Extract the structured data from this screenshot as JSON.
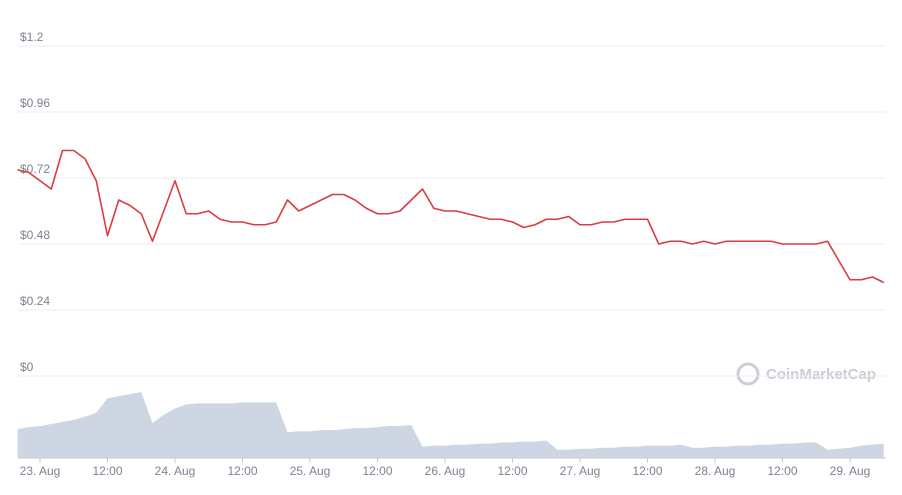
{
  "chart_data": {
    "type": "line",
    "categories": [
      null,
      null,
      "23. Aug",
      null,
      null,
      null,
      null,
      null,
      "12:00",
      null,
      null,
      null,
      null,
      null,
      "24. Aug",
      null,
      null,
      null,
      null,
      null,
      "12:00",
      null,
      null,
      null,
      null,
      null,
      "25. Aug",
      null,
      null,
      null,
      null,
      null,
      "12:00",
      null,
      null,
      null,
      null,
      null,
      "26. Aug",
      null,
      null,
      null,
      null,
      null,
      "12:00",
      null,
      null,
      null,
      null,
      null,
      "27. Aug",
      null,
      null,
      null,
      null,
      null,
      "12:00",
      null,
      null,
      null,
      null,
      null,
      "28. Aug",
      null,
      null,
      null,
      null,
      null,
      "12:00",
      null,
      null,
      null,
      null,
      null,
      "29. Aug",
      null,
      null,
      null
    ],
    "values": [
      0.75,
      0.74,
      0.71,
      0.68,
      0.82,
      0.82,
      0.79,
      0.71,
      0.51,
      0.64,
      0.62,
      0.59,
      0.49,
      0.6,
      0.71,
      0.59,
      0.59,
      0.6,
      0.57,
      0.56,
      0.56,
      0.55,
      0.55,
      0.56,
      0.64,
      0.6,
      0.62,
      0.64,
      0.66,
      0.66,
      0.64,
      0.61,
      0.59,
      0.59,
      0.6,
      0.64,
      0.68,
      0.61,
      0.6,
      0.6,
      0.59,
      0.58,
      0.57,
      0.57,
      0.56,
      0.54,
      0.55,
      0.57,
      0.57,
      0.58,
      0.55,
      0.55,
      0.56,
      0.56,
      0.57,
      0.57,
      0.57,
      0.48,
      0.49,
      0.49,
      0.48,
      0.49,
      0.48,
      0.49,
      0.49,
      0.49,
      0.49,
      0.49,
      0.48,
      0.48,
      0.48,
      0.48,
      0.49,
      0.42,
      0.35,
      0.35,
      0.36,
      0.34
    ],
    "color": "#dc3b3f",
    "volume": {
      "color": "#cfd6e3",
      "values": [
        28,
        30,
        31,
        33,
        35,
        37,
        40,
        44,
        58,
        60,
        62,
        64,
        34,
        42,
        48,
        52,
        53,
        53,
        53,
        53,
        54,
        54,
        54,
        54,
        25,
        26,
        26,
        27,
        27,
        28,
        29,
        29,
        30,
        31,
        31,
        32,
        11,
        12,
        12,
        13,
        13,
        14,
        14,
        15,
        15,
        16,
        16,
        17,
        8,
        8,
        9,
        9,
        10,
        10,
        11,
        11,
        12,
        12,
        12,
        13,
        10,
        10,
        11,
        11,
        12,
        12,
        13,
        13,
        14,
        14,
        15,
        15,
        8,
        9,
        10,
        12,
        13,
        14
      ]
    },
    "ylim": [
      0,
      1.2
    ],
    "yticks": [
      {
        "value": 0,
        "label": "$0"
      },
      {
        "value": 0.24,
        "label": "$0.24"
      },
      {
        "value": 0.48,
        "label": "$0.48"
      },
      {
        "value": 0.72,
        "label": "$0.72"
      },
      {
        "value": 0.96,
        "label": "$0.96"
      },
      {
        "value": 1.2,
        "label": "$1.2"
      }
    ],
    "grid": true,
    "watermark": "CoinMarketCap"
  }
}
